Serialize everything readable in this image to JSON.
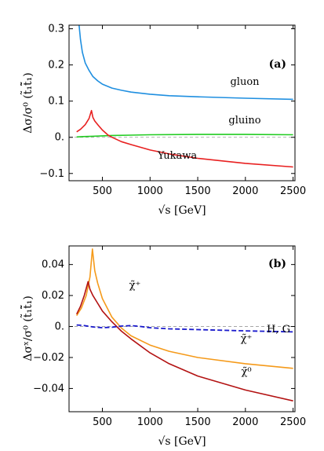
{
  "chart_data": [
    {
      "type": "line",
      "panel_label": "(a)",
      "xlabel": "√s [GeV]",
      "ylabel": "Δσ/σ⁰ (t̃₁t̃̄₁)",
      "xlim": [
        150,
        2520
      ],
      "ylim": [
        -0.12,
        0.31
      ],
      "xticks": [
        500,
        1000,
        1500,
        2000,
        2500
      ],
      "yticks": [
        -0.1,
        0.0,
        0.1,
        0.2,
        0.3
      ],
      "xtick_labels": [
        "500",
        "1000",
        "1500",
        "2000",
        "2500"
      ],
      "ytick_labels": [
        "−0.1",
        "0.",
        "0.1",
        "0.2",
        "0.3"
      ],
      "reference_line": 0,
      "series": [
        {
          "name": "gluon",
          "color": "#1f8fe0",
          "style": "solid",
          "x": [
            255,
            270,
            290,
            320,
            360,
            400,
            450,
            500,
            600,
            700,
            800,
            1000,
            1200,
            1500,
            2000,
            2500
          ],
          "y": [
            0.31,
            0.27,
            0.235,
            0.205,
            0.185,
            0.168,
            0.156,
            0.147,
            0.136,
            0.13,
            0.125,
            0.119,
            0.115,
            0.112,
            0.108,
            0.105
          ]
        },
        {
          "name": "gluino",
          "color": "#22cc22",
          "style": "solid",
          "x": [
            230,
            300,
            400,
            500,
            600,
            800,
            1000,
            1500,
            2000,
            2500
          ],
          "y": [
            0.001,
            0.002,
            0.003,
            0.004,
            0.005,
            0.006,
            0.007,
            0.008,
            0.008,
            0.007
          ]
        },
        {
          "name": "Yukawa",
          "color": "#e82020",
          "style": "solid",
          "x": [
            230,
            270,
            320,
            360,
            385,
            400,
            420,
            460,
            500,
            560,
            600,
            700,
            800,
            1000,
            1200,
            1500,
            2000,
            2500
          ],
          "y": [
            0.015,
            0.022,
            0.035,
            0.052,
            0.074,
            0.055,
            0.045,
            0.032,
            0.02,
            0.006,
            0.0,
            -0.012,
            -0.02,
            -0.035,
            -0.046,
            -0.058,
            -0.072,
            -0.082
          ]
        }
      ],
      "annotations": [
        "gluon",
        "gluino",
        "Yukawa"
      ]
    },
    {
      "type": "line",
      "panel_label": "(b)",
      "xlabel": "√s [GeV]",
      "ylabel": "Δσˣ/σ⁰ (t̃₁t̃̄₁)",
      "xlim": [
        150,
        2520
      ],
      "ylim": [
        -0.055,
        0.052
      ],
      "xticks": [
        500,
        1000,
        1500,
        2000,
        2500
      ],
      "yticks": [
        -0.04,
        -0.02,
        0.0,
        0.02,
        0.04
      ],
      "xtick_labels": [
        "500",
        "1000",
        "1500",
        "2000",
        "2500"
      ],
      "ytick_labels": [
        "−0.04",
        "−0.02",
        "0.",
        "0.02",
        "0.04"
      ],
      "reference_line": 0,
      "series": [
        {
          "name": "χ̃⁺",
          "color": "#f59a1a",
          "style": "solid",
          "x": [
            230,
            280,
            330,
            370,
            395,
            420,
            450,
            500,
            600,
            700,
            800,
            1000,
            1200,
            1500,
            2000,
            2500
          ],
          "y": [
            0.007,
            0.012,
            0.02,
            0.032,
            0.05,
            0.036,
            0.028,
            0.018,
            0.006,
            -0.001,
            -0.006,
            -0.012,
            -0.016,
            -0.02,
            -0.024,
            -0.027
          ]
        },
        {
          "name": "χ̃⁰",
          "color": "#b31212",
          "style": "solid",
          "x": [
            230,
            270,
            310,
            350,
            370,
            400,
            450,
            500,
            600,
            700,
            800,
            1000,
            1200,
            1500,
            2000,
            2500
          ],
          "y": [
            0.008,
            0.013,
            0.02,
            0.029,
            0.024,
            0.02,
            0.015,
            0.01,
            0.003,
            -0.003,
            -0.008,
            -0.017,
            -0.024,
            -0.032,
            -0.041,
            -0.048
          ]
        },
        {
          "name": "H, G",
          "color": "#1a1acc",
          "style": "dashed",
          "x": [
            230,
            300,
            400,
            500,
            600,
            700,
            800,
            900,
            1000,
            1200,
            1500,
            2000,
            2500
          ],
          "y": [
            0.001,
            0.0007,
            -0.0003,
            -0.0008,
            -0.0005,
            0.0003,
            0.0006,
            0.0,
            -0.0008,
            -0.0015,
            -0.002,
            -0.0028,
            -0.0035
          ]
        }
      ],
      "annotations": [
        "χ̃⁺",
        "χ̃⁺",
        "χ̃⁰",
        "H, G"
      ]
    }
  ]
}
